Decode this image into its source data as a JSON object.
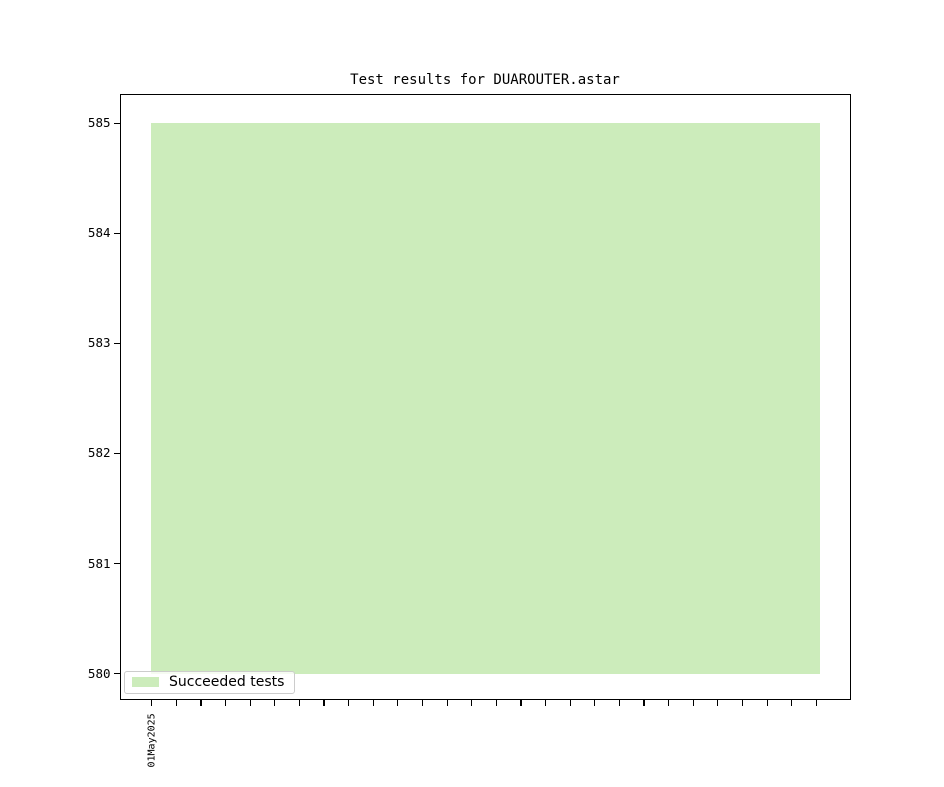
{
  "chart_data": {
    "type": "area",
    "title": "Test results for DUAROUTER.astar",
    "series": [
      {
        "name": "Succeeded tests",
        "color": "#ccecbb",
        "values": [
          585
        ]
      }
    ],
    "baseline": 580,
    "ylim": [
      579.76,
      585.27
    ],
    "y_ticks": [
      "585",
      "584",
      "583",
      "582",
      "581",
      "580"
    ],
    "x_tick_count": 28,
    "x_tick_labels": [
      "01May2025"
    ],
    "legend": {
      "label": "Succeeded tests",
      "position": "lower left"
    },
    "grid": false,
    "axis_color": "#000000",
    "background_color": "#ffffff"
  }
}
